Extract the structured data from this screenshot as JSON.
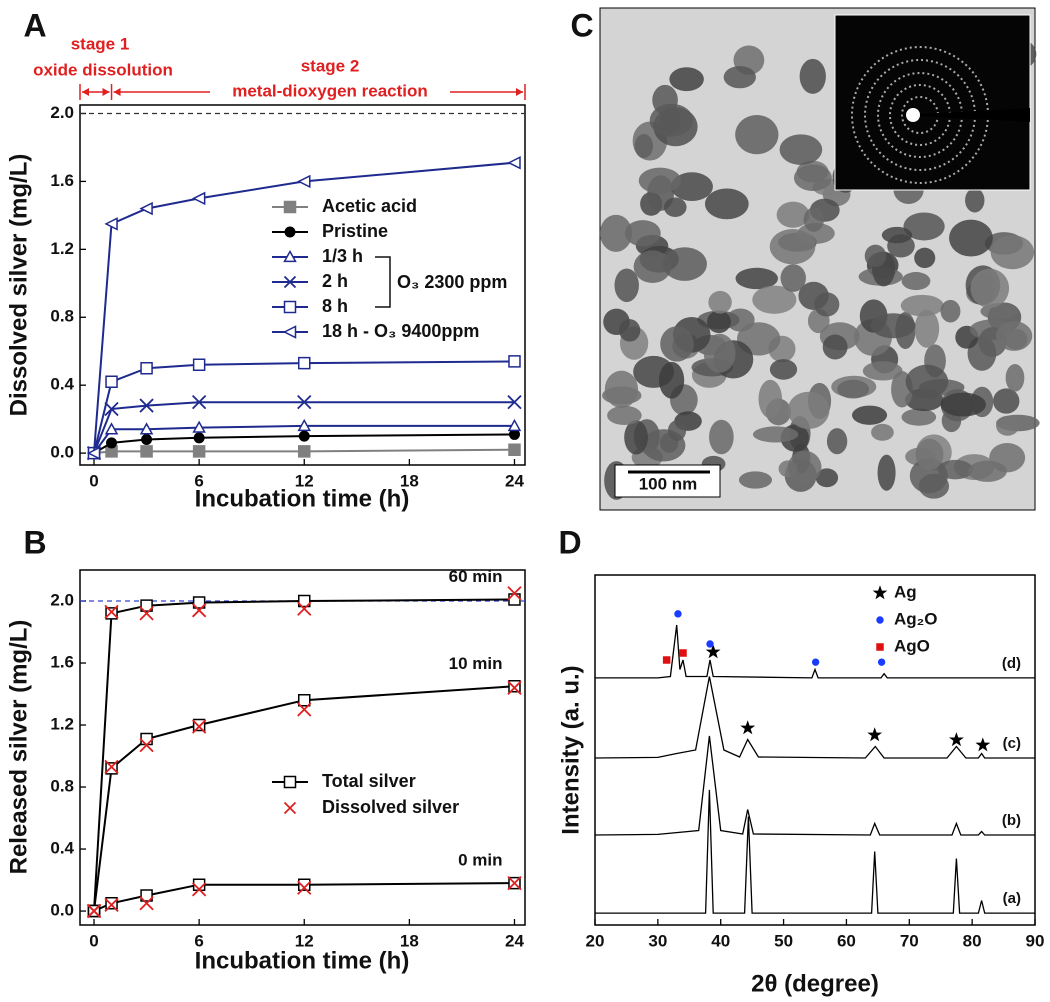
{
  "chart_data": [
    {
      "type": "line",
      "label": "A",
      "x_label": "Incubation time (h)",
      "y_label": "Dissolved silver (mg/L)",
      "x": [
        0,
        1,
        3,
        6,
        12,
        24
      ],
      "xlim": [
        -0.8,
        24.6
      ],
      "xticks": [
        0,
        6,
        12,
        18,
        24
      ],
      "ylim": [
        -0.07,
        2.05
      ],
      "yticks": [
        {
          "value": 0,
          "label": "0.0"
        },
        0.4,
        0.8,
        1.2,
        1.6,
        {
          "value": 2,
          "label": "2.0"
        }
      ],
      "reference_line": 2,
      "reference_color": "#333333",
      "annotations": [
        "stage 1",
        "oxide dissolution",
        "stage 2",
        "metal-dioxygen reaction",
        "O₃ 2300 ppm"
      ],
      "series": [
        {
          "name": "Acetic acid",
          "color": "#808080",
          "marker": "square-filled",
          "values": [
            0,
            0.01,
            0.01,
            0.01,
            0.01,
            0.02
          ]
        },
        {
          "name": "Pristine",
          "color": "#000000",
          "marker": "circle-filled",
          "values": [
            0,
            0.06,
            0.08,
            0.09,
            0.1,
            0.11
          ]
        },
        {
          "name": "1/3 h",
          "color": "#1f2a8f",
          "marker": "triangle",
          "values": [
            0,
            0.14,
            0.14,
            0.15,
            0.16,
            0.16
          ]
        },
        {
          "name": "2 h",
          "color": "#1f2a8f",
          "marker": "cross",
          "values": [
            0,
            0.26,
            0.28,
            0.3,
            0.3,
            0.3
          ]
        },
        {
          "name": "8 h",
          "color": "#1f2a8f",
          "marker": "square",
          "values": [
            0,
            0.42,
            0.5,
            0.52,
            0.53,
            0.54
          ]
        },
        {
          "name": "18 h - O₃ 9400ppm",
          "color": "#1f2a8f",
          "marker": "triangle-left",
          "values": [
            0,
            1.35,
            1.44,
            1.5,
            1.6,
            1.71
          ]
        }
      ]
    },
    {
      "type": "line",
      "label": "B",
      "x_label": "Incubation time (h)",
      "y_label": "Released silver (mg/L)",
      "x": [
        0,
        1,
        3,
        6,
        12,
        24
      ],
      "xlim": [
        -0.8,
        24.6
      ],
      "xticks": [
        0,
        6,
        12,
        18,
        24
      ],
      "ylim": [
        -0.09,
        2.2
      ],
      "yticks": [
        {
          "value": 0,
          "label": "0.0"
        },
        0.4,
        0.8,
        1.2,
        1.6,
        {
          "value": 2,
          "label": "2.0"
        }
      ],
      "reference_line": 2,
      "reference_color": "#3344cc",
      "series": [
        {
          "name": "Total silver",
          "color": "#000000",
          "marker": "square",
          "line": true,
          "groups": [
            {
              "label": "60 min",
              "values": [
                0,
                1.92,
                1.97,
                1.99,
                2.0,
                2.01
              ]
            },
            {
              "label": "10 min",
              "values": [
                0,
                0.92,
                1.11,
                1.2,
                1.36,
                1.45
              ]
            },
            {
              "label": "0 min",
              "values": [
                0,
                0.05,
                0.1,
                0.17,
                0.17,
                0.18
              ]
            }
          ]
        },
        {
          "name": "Dissolved silver",
          "color": "#e02020",
          "marker": "cross",
          "line": false,
          "groups": [
            {
              "values": [
                0,
                1.93,
                1.92,
                1.94,
                1.95,
                2.05
              ]
            },
            {
              "values": [
                0,
                0.93,
                1.07,
                1.19,
                1.3,
                1.44
              ]
            },
            {
              "values": [
                0,
                0.04,
                0.05,
                0.14,
                0.15,
                0.18
              ]
            }
          ]
        }
      ]
    },
    {
      "type": "image",
      "label": "C",
      "scale_bar": "100 nm"
    },
    {
      "type": "line",
      "label": "D",
      "x_label": "2θ (degree)",
      "y_label": "Intensity (a. u.)",
      "xlim": [
        20,
        90
      ],
      "xticks": [
        20,
        30,
        40,
        50,
        60,
        70,
        80,
        90
      ],
      "ylim": [
        0,
        100
      ],
      "series": [
        {
          "name": "(d)",
          "color": "#000000",
          "x": [
            20,
            30,
            32,
            33,
            33.5,
            34,
            34.5,
            37.8,
            38.3,
            38.8,
            54.5,
            55,
            55.5,
            65.5,
            66,
            66.5,
            90
          ],
          "values": [
            70.6,
            70.6,
            71,
            85.7,
            73,
            75.7,
            71,
            71,
            75.7,
            71,
            70.6,
            73,
            70.6,
            70.6,
            71.8,
            70.6,
            70.6
          ]
        },
        {
          "name": "(c)",
          "color": "#000000",
          "x": [
            20,
            30,
            33,
            36,
            38.2,
            40.5,
            43,
            44.3,
            46,
            63,
            64.6,
            66,
            76,
            77.5,
            79,
            81,
            81.5,
            82,
            90
          ],
          "values": [
            47.7,
            47.9,
            49,
            50,
            71,
            50,
            48,
            53,
            48,
            47.7,
            51,
            47.7,
            47.7,
            51,
            47.7,
            47.7,
            49,
            47.7,
            47.7
          ]
        },
        {
          "name": "(b)",
          "color": "#000000",
          "x": [
            20,
            30,
            36.5,
            38.2,
            40,
            43.5,
            44.3,
            45.2,
            63.8,
            64.5,
            65.3,
            76.8,
            77.5,
            78.2,
            81,
            81.5,
            82,
            90
          ],
          "values": [
            25.7,
            25.9,
            27,
            54,
            27,
            26,
            33,
            26,
            25.7,
            29,
            25.7,
            25.7,
            29,
            25.7,
            25.7,
            26.7,
            25.7,
            25.7
          ]
        },
        {
          "name": "(a)",
          "color": "#000000",
          "x": [
            20,
            30,
            37.6,
            38.2,
            38.8,
            43.8,
            44.4,
            45,
            64,
            64.5,
            65,
            77,
            77.5,
            78,
            81,
            81.5,
            82,
            90
          ],
          "values": [
            3.4,
            3.4,
            3.4,
            38.6,
            3.4,
            3.4,
            31,
            3.4,
            3.4,
            21,
            3.4,
            3.4,
            19,
            3.4,
            3.4,
            7,
            3.4,
            3.4
          ]
        }
      ],
      "markers": [
        {
          "name": "Ag",
          "color": "#000000",
          "shape": "star",
          "x": [
            38.8,
            44.3,
            64.5,
            77.5,
            81.7
          ],
          "y": [
            78,
            56.3,
            54.3,
            52.9,
            51.4
          ]
        },
        {
          "name": "Ag₂O",
          "color": "#1a3cff",
          "shape": "dot",
          "x": [
            33.2,
            38.3,
            55.1,
            65.6
          ],
          "y": [
            88.9,
            80.3,
            75.1,
            75.1
          ]
        },
        {
          "name": "AgO",
          "color": "#e01010",
          "shape": "square-small",
          "x": [
            31.4,
            34
          ],
          "y": [
            75.7,
            77.7
          ]
        }
      ]
    }
  ]
}
